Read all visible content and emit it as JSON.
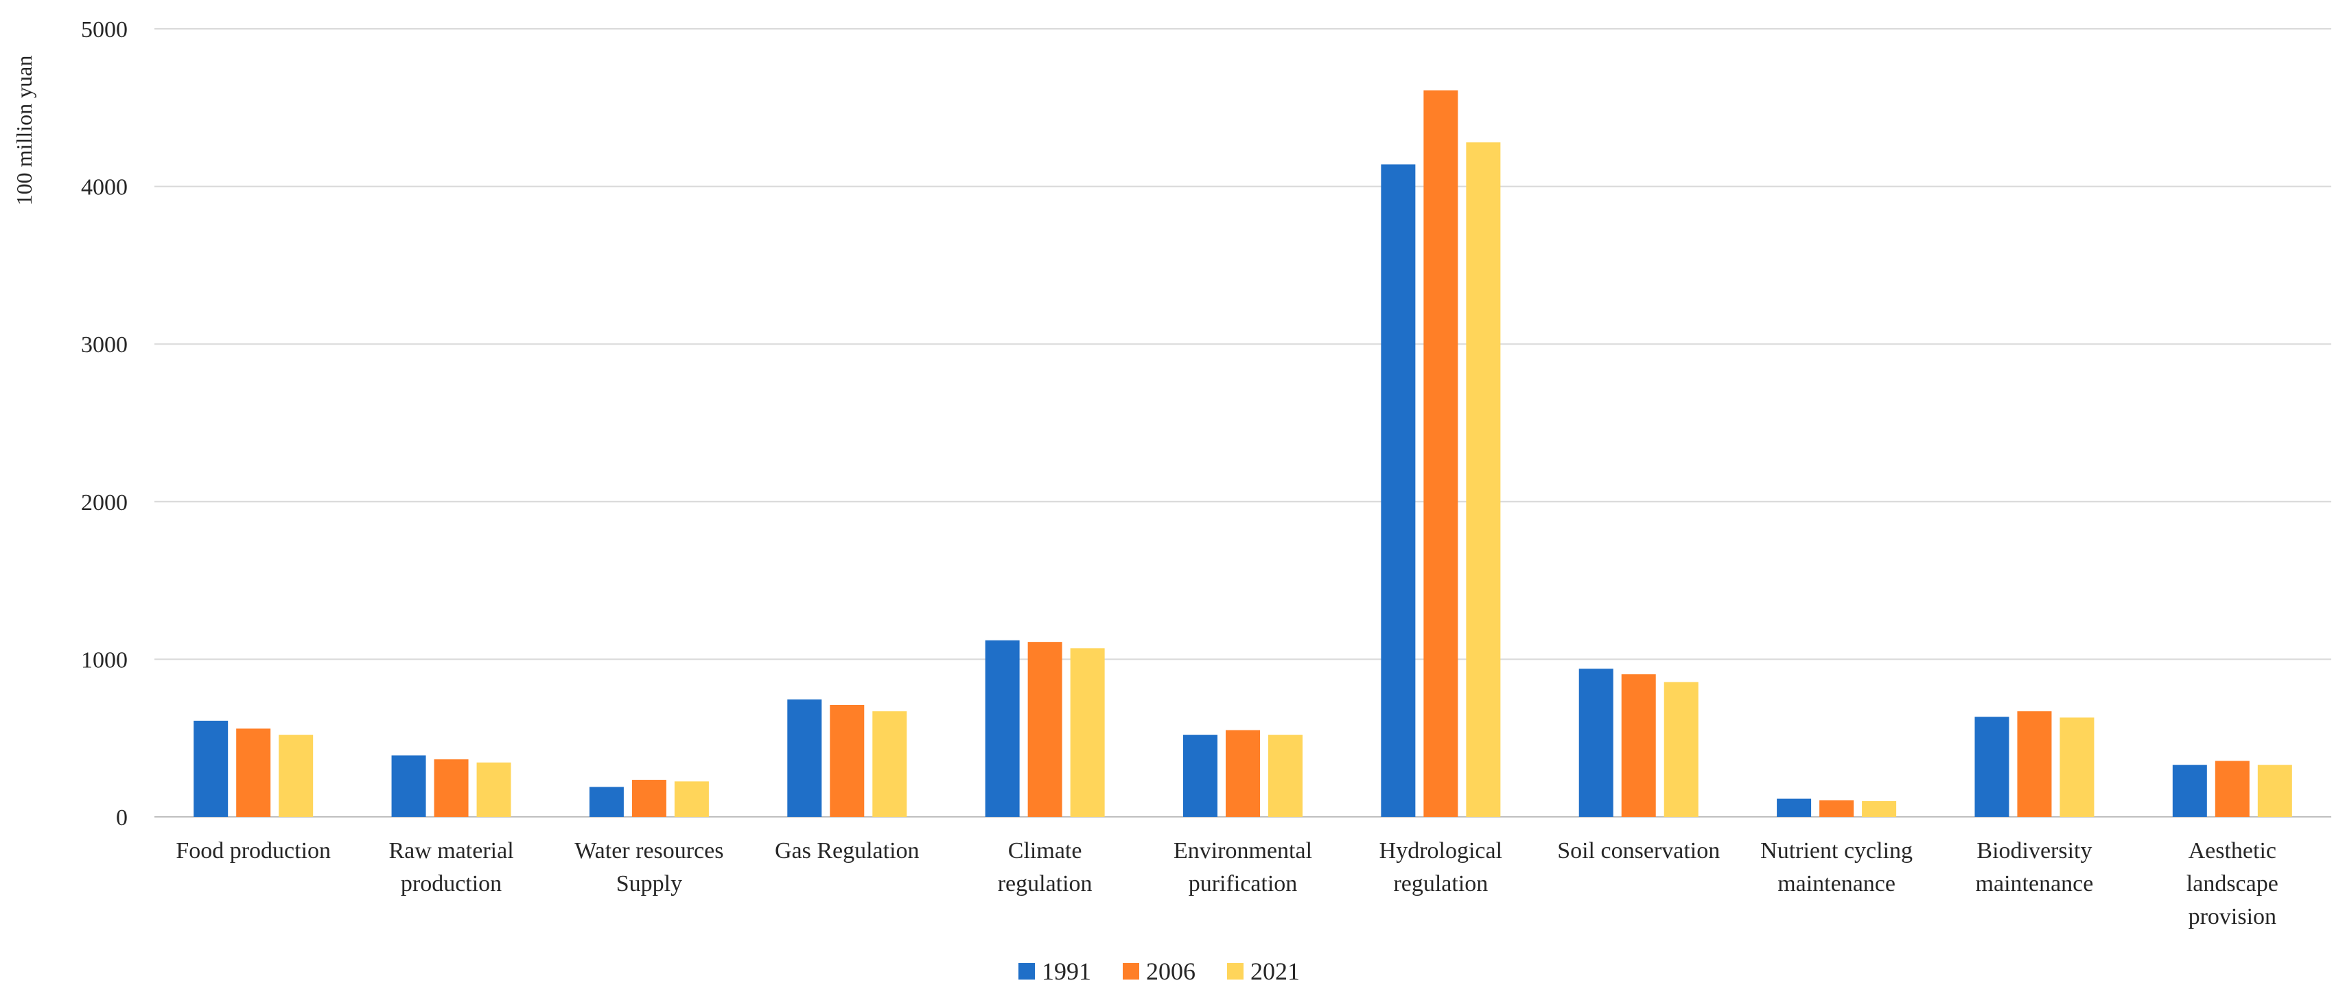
{
  "chart_data": {
    "type": "bar",
    "title": "",
    "xlabel": "",
    "ylabel": "100 million yuan",
    "ylim": [
      0,
      5000
    ],
    "yticks": [
      0,
      1000,
      2000,
      3000,
      4000,
      5000
    ],
    "grid": true,
    "legend_position": "bottom-center",
    "categories": [
      [
        "Food production"
      ],
      [
        "Raw material",
        "production"
      ],
      [
        "Water resources",
        "Supply"
      ],
      [
        "Gas Regulation"
      ],
      [
        "Climate",
        "regulation"
      ],
      [
        "Environmental",
        "purification"
      ],
      [
        "Hydrological",
        "regulation"
      ],
      [
        "Soil conservation"
      ],
      [
        "Nutrient cycling",
        "maintenance"
      ],
      [
        "Biodiversity",
        "maintenance"
      ],
      [
        "Aesthetic",
        "landscape",
        "provision"
      ]
    ],
    "series": [
      {
        "name": "1991",
        "color": "#1F6FC8",
        "values": [
          610,
          390,
          190,
          745,
          1120,
          520,
          4140,
          940,
          115,
          635,
          330
        ]
      },
      {
        "name": "2006",
        "color": "#FF7F27",
        "values": [
          560,
          365,
          235,
          710,
          1110,
          550,
          4610,
          905,
          105,
          670,
          355
        ]
      },
      {
        "name": "2021",
        "color": "#FFD55A",
        "values": [
          520,
          345,
          225,
          670,
          1070,
          520,
          4280,
          855,
          100,
          630,
          330
        ]
      }
    ]
  }
}
